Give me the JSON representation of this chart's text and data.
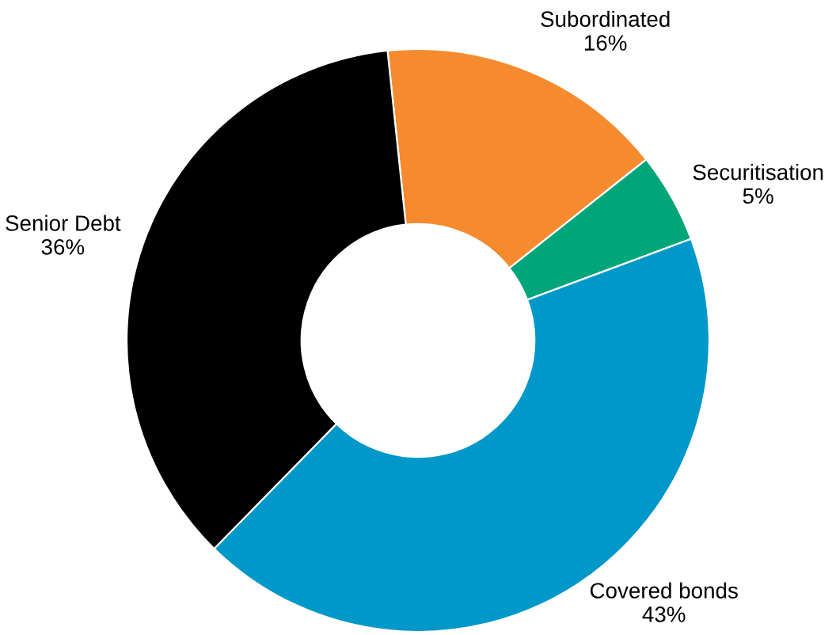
{
  "chart_data": {
    "type": "donut",
    "categories": [
      "Subordinated",
      "Securitisation",
      "Covered bonds",
      "Senior Debt"
    ],
    "values": [
      16,
      5,
      43,
      36
    ],
    "value_labels": [
      "16%",
      "5%",
      "43%",
      "36%"
    ],
    "colors": [
      "#f58a2e",
      "#00a67a",
      "#0097c9",
      "#000000"
    ],
    "legend": false
  }
}
